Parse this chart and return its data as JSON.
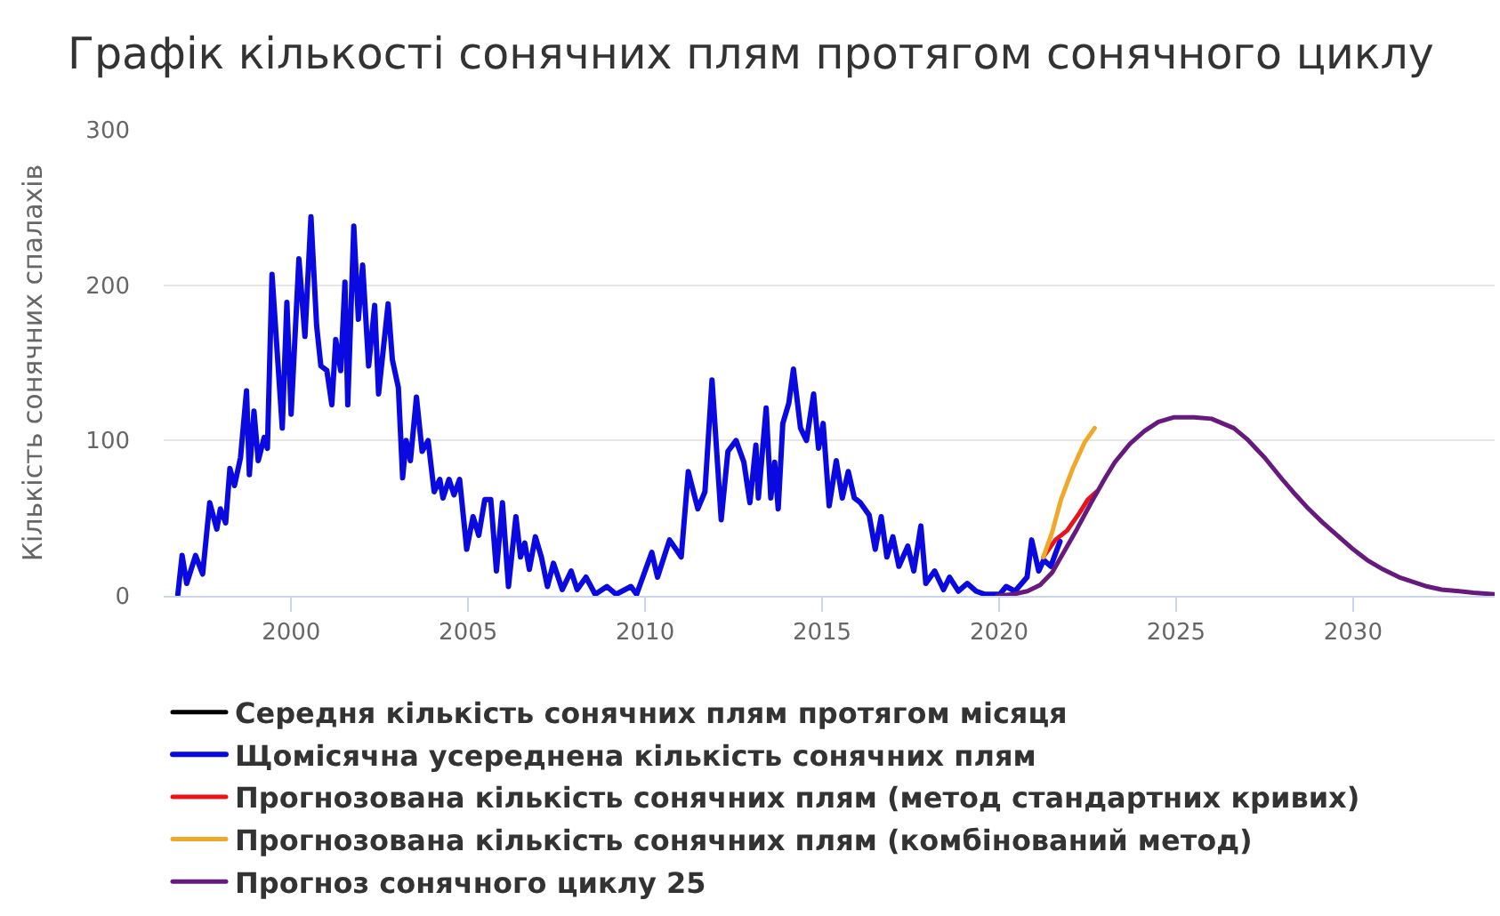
{
  "chart_data": {
    "type": "line",
    "title": "Графік кількості сонячних плям протягом сонячного циклу",
    "ylabel": "Кількість сонячних спалахів",
    "xlim": [
      1996.4,
      2034
    ],
    "xticks": [
      2000,
      2005,
      2010,
      2015,
      2020,
      2025,
      2030
    ],
    "ylim": [
      0,
      300
    ],
    "yticks": [
      0,
      100,
      200,
      300
    ],
    "grid": "y",
    "legend": "bottom",
    "series": [
      {
        "name": "Середня кількість сонячних плям протягом місяця",
        "color": "#000000"
      },
      {
        "name": "Щомісячна усереднена кількість сонячних плям",
        "color": "#0a0ae0",
        "x": [
          1996.8,
          1996.92,
          1997.05,
          1997.3,
          1997.5,
          1997.7,
          1997.9,
          1998.0,
          1998.15,
          1998.27,
          1998.4,
          1998.57,
          1998.74,
          1998.82,
          1998.95,
          1999.07,
          1999.24,
          1999.33,
          1999.46,
          1999.75,
          1999.88,
          2000.0,
          2000.22,
          2000.39,
          2000.56,
          2000.72,
          2000.84,
          2001.01,
          2001.15,
          2001.26,
          2001.4,
          2001.52,
          2001.6,
          2001.77,
          2001.9,
          2002.02,
          2002.19,
          2002.36,
          2002.47,
          2002.74,
          2002.86,
          2003.03,
          2003.15,
          2003.25,
          2003.37,
          2003.54,
          2003.7,
          2003.87,
          2004.04,
          2004.2,
          2004.29,
          2004.46,
          2004.6,
          2004.76,
          2004.96,
          2005.14,
          2005.3,
          2005.47,
          2005.64,
          2005.8,
          2005.97,
          2006.14,
          2006.35,
          2006.48,
          2006.6,
          2006.73,
          2006.9,
          2007.07,
          2007.24,
          2007.41,
          2007.66,
          2007.91,
          2008.08,
          2008.33,
          2008.59,
          2008.92,
          2009.18,
          2009.6,
          2009.76,
          2010.19,
          2010.35,
          2010.69,
          2011.02,
          2011.22,
          2011.49,
          2011.69,
          2011.89,
          2012.15,
          2012.34,
          2012.57,
          2012.79,
          2012.96,
          2013.13,
          2013.2,
          2013.42,
          2013.55,
          2013.66,
          2013.76,
          2013.89,
          2014.06,
          2014.19,
          2014.39,
          2014.56,
          2014.76,
          2014.9,
          2015.03,
          2015.2,
          2015.4,
          2015.57,
          2015.74,
          2015.91,
          2016.08,
          2016.33,
          2016.5,
          2016.67,
          2016.83,
          2017.0,
          2017.17,
          2017.42,
          2017.59,
          2017.79,
          2017.93,
          2018.18,
          2018.43,
          2018.6,
          2018.85,
          2019.1,
          2019.35,
          2019.6,
          2020.02,
          2020.2,
          2020.45,
          2020.79,
          2020.92,
          2021.12,
          2021.26,
          2021.46,
          2021.72
        ],
        "values": [
          1,
          26,
          8,
          26,
          14,
          60,
          43,
          56,
          47,
          82,
          71,
          89,
          132,
          78,
          119,
          87,
          102,
          95,
          207,
          108,
          189,
          117,
          217,
          167,
          244,
          174,
          148,
          145,
          123,
          165,
          145,
          202,
          123,
          238,
          178,
          213,
          148,
          187,
          130,
          188,
          152,
          134,
          76,
          100,
          87,
          128,
          93,
          100,
          67,
          75,
          63,
          75,
          65,
          75,
          30,
          51,
          39,
          62,
          62,
          16,
          60,
          6,
          51,
          25,
          34,
          17,
          38,
          25,
          6,
          21,
          4,
          16,
          4,
          12,
          1,
          6,
          1,
          6,
          1,
          28,
          12,
          36,
          25,
          80,
          56,
          67,
          139,
          49,
          93,
          100,
          86,
          60,
          97,
          63,
          121,
          63,
          86,
          56,
          111,
          124,
          146,
          108,
          100,
          130,
          95,
          111,
          58,
          87,
          63,
          80,
          63,
          60,
          52,
          30,
          51,
          25,
          38,
          19,
          32,
          16,
          45,
          8,
          16,
          4,
          12,
          3,
          8,
          3,
          1,
          1,
          6,
          3,
          12,
          36,
          16,
          23,
          19,
          35
        ]
      },
      {
        "name": "Прогнозована кількість сонячних плям (метод стандартних кривих)",
        "color": "#e8141c",
        "x": [
          2021.25,
          2021.59,
          2021.92,
          2022.26,
          2022.51,
          2022.75
        ],
        "values": [
          25,
          36,
          42,
          53,
          62,
          67
        ]
      },
      {
        "name": "Прогнозована кількість сонячних плям (комбінований метод)",
        "color": "#f0a82a",
        "x": [
          2021.25,
          2021.5,
          2021.75,
          2022.08,
          2022.42,
          2022.7
        ],
        "values": [
          25,
          41,
          62,
          82,
          99,
          108
        ]
      },
      {
        "name": "Прогноз сонячного циклу 25",
        "color": "#661a7e",
        "x": [
          2019.95,
          2020.4,
          2020.8,
          2021.16,
          2021.5,
          2021.75,
          2022.2,
          2022.6,
          2023.0,
          2023.27,
          2023.7,
          2024.1,
          2024.5,
          2024.95,
          2025.5,
          2026.0,
          2026.63,
          2027.0,
          2027.5,
          2028.0,
          2028.3,
          2028.7,
          2029.15,
          2029.6,
          2030.0,
          2030.4,
          2030.85,
          2031.3,
          2031.7,
          2032.1,
          2032.5,
          2033.0,
          2033.4,
          2034.0
        ],
        "values": [
          0,
          1,
          3,
          7,
          15,
          25,
          43,
          60,
          76,
          86,
          98,
          106,
          112,
          115,
          115,
          114,
          108,
          101,
          89,
          75,
          67,
          57,
          47,
          38,
          30,
          23,
          17,
          12,
          9,
          6,
          4,
          3,
          2,
          1
        ]
      }
    ]
  }
}
